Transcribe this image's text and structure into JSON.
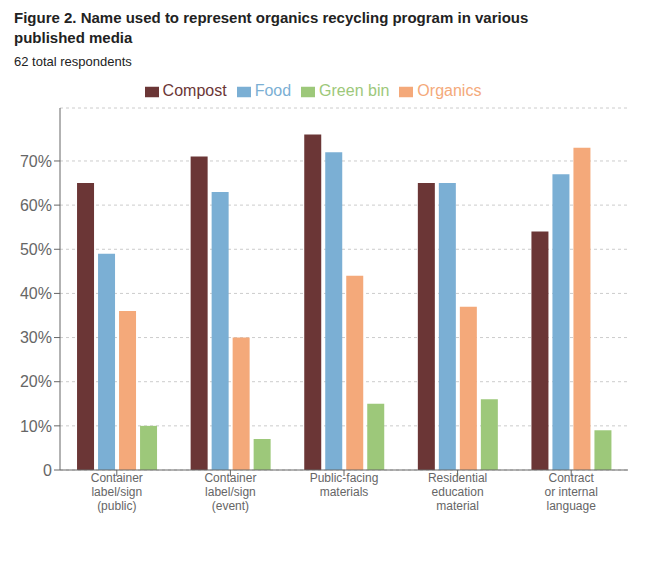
{
  "chart_data": {
    "type": "bar",
    "title": "Figure 2. Name used to represent organics recycling program in various\npublished media",
    "subtitle": "62 total respondents",
    "categories": [
      "Container\nlabel/sign\n(public)",
      "Container\nlabel/sign\n(event)",
      "Public-facing\nmaterials",
      "Residential\neducation\nmaterial",
      "Contract\nor internal\nlanguage"
    ],
    "series": [
      {
        "name": "Compost",
        "color": "#6B3636",
        "values": [
          65,
          71,
          76,
          65,
          54
        ]
      },
      {
        "name": "Food",
        "color": "#7BAFD4",
        "values": [
          49,
          63,
          72,
          65,
          67
        ]
      },
      {
        "name": "Organics",
        "color": "#F4A97A",
        "values": [
          36,
          30,
          44,
          37,
          73
        ]
      },
      {
        "name": "Green bin",
        "color": "#9DC87A",
        "values": [
          10,
          7,
          15,
          16,
          9
        ]
      }
    ],
    "ylim": [
      0,
      82
    ],
    "yticks": [
      0,
      {
        "value": 10,
        "label": "10%"
      },
      {
        "value": 20,
        "label": "20%"
      },
      {
        "value": 30,
        "label": "30%"
      },
      {
        "value": 40,
        "label": "40%"
      },
      {
        "value": 50,
        "label": "50%"
      },
      {
        "value": 60,
        "label": "60%"
      },
      {
        "value": 70,
        "label": "70%"
      }
    ],
    "grid": true,
    "legend": "top"
  }
}
